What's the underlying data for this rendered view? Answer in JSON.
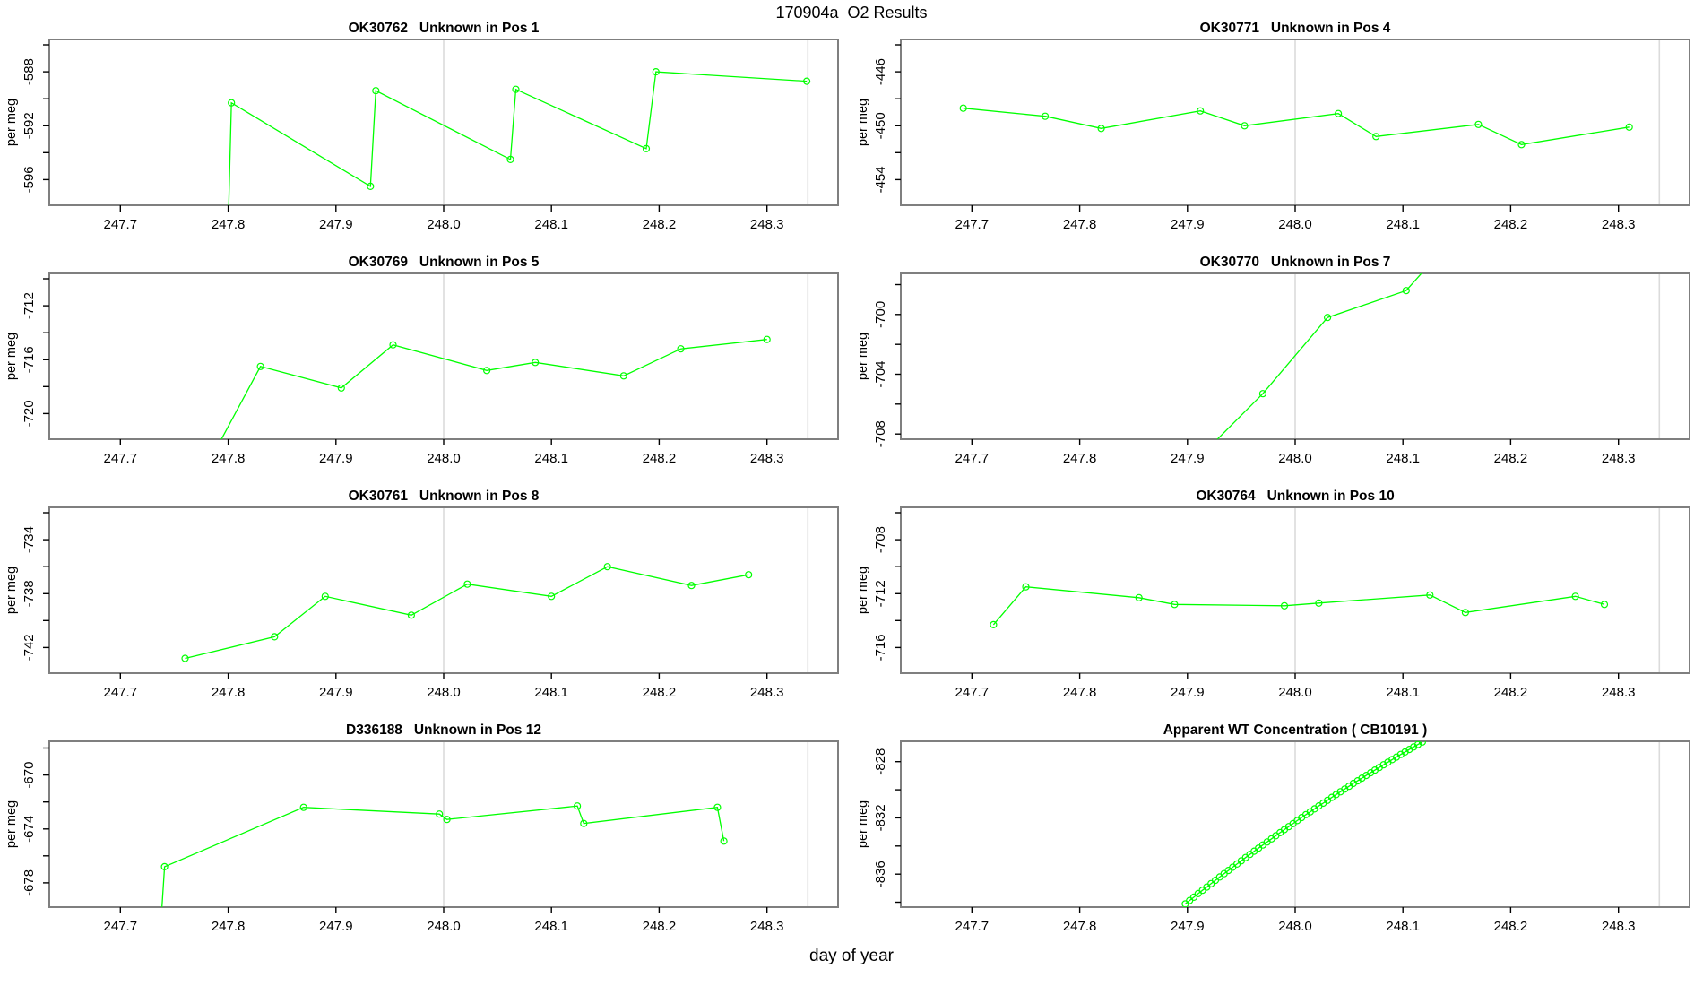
{
  "figure": {
    "title": "170904a  O2 Results",
    "xlabel": "day of year",
    "ylabel": "per meg",
    "accent_color": "#00FF00",
    "box_color": "#7F7F7F",
    "grid_color": "#DBDBDB",
    "xlim": [
      247.634,
      248.366
    ],
    "x_ticks": [
      247.7,
      247.8,
      247.9,
      248.0,
      248.1,
      248.2,
      248.3
    ],
    "x_tick_labels": [
      "247.7",
      "247.8",
      "247.9",
      "248.0",
      "248.1",
      "248.2",
      "248.3"
    ],
    "vlines": [
      248.0,
      248.338
    ]
  },
  "chart_data": [
    {
      "type": "line",
      "id": "OK30762",
      "title": "OK30762   Unknown in Pos 1",
      "marker": "circle-open",
      "ylim": [
        -597.9,
        -585.6
      ],
      "yticks": [
        -596,
        -594,
        -592,
        -590,
        -588,
        -586
      ],
      "yticks_labeled": [
        -596,
        -592,
        -588
      ],
      "x": [
        247.8,
        247.803,
        247.932,
        247.937,
        248.062,
        248.067,
        248.188,
        248.197,
        248.337
      ],
      "y": [
        -599.5,
        -590.3,
        -596.5,
        -589.4,
        -594.5,
        -589.3,
        -593.7,
        -588.0,
        -588.7
      ]
    },
    {
      "type": "line",
      "id": "OK30771",
      "title": "OK30771   Unknown in Pos 4",
      "marker": "circle-open",
      "ylim": [
        -455.9,
        -443.6
      ],
      "yticks": [
        -454,
        -452,
        -450,
        -448,
        -446,
        -444
      ],
      "yticks_labeled": [
        -454,
        -450,
        -446
      ],
      "x": [
        247.692,
        247.768,
        247.82,
        247.912,
        247.953,
        248.04,
        248.075,
        248.17,
        248.21,
        248.31
      ],
      "y": [
        -448.7,
        -449.3,
        -450.2,
        -448.9,
        -450.0,
        -449.1,
        -450.8,
        -449.9,
        -451.4,
        -450.1
      ]
    },
    {
      "type": "line",
      "id": "OK30769",
      "title": "OK30769   Unknown in Pos 5",
      "marker": "circle-open",
      "ylim": [
        -721.9,
        -709.6
      ],
      "yticks": [
        -720,
        -718,
        -716,
        -714,
        -712,
        -710
      ],
      "yticks_labeled": [
        -720,
        -716,
        -712
      ],
      "x": [
        247.783,
        247.83,
        247.905,
        247.953,
        248.04,
        248.085,
        248.167,
        248.22,
        248.3
      ],
      "y": [
        -723.5,
        -716.5,
        -718.1,
        -714.9,
        -716.8,
        -716.2,
        -717.2,
        -715.2,
        -714.5
      ]
    },
    {
      "type": "line",
      "id": "OK30770",
      "title": "OK30770   Unknown in Pos 7",
      "marker": "circle-open",
      "ylim": [
        -708.35,
        -697.25
      ],
      "yticks": [
        -708,
        -706,
        -704,
        -702,
        -700,
        -698
      ],
      "yticks_labeled": [
        -708,
        -704,
        -700
      ],
      "x": [
        247.905,
        247.97,
        248.03,
        248.103,
        248.14
      ],
      "y": [
        -710.0,
        -705.3,
        -700.2,
        -698.4,
        -695.4
      ]
    },
    {
      "type": "line",
      "id": "OK30761",
      "title": "OK30761   Unknown in Pos 8",
      "marker": "circle-open",
      "ylim": [
        -743.9,
        -731.6
      ],
      "yticks": [
        -742,
        -740,
        -738,
        -736,
        -734,
        -732
      ],
      "yticks_labeled": [
        -742,
        -738,
        -734
      ],
      "x": [
        247.76,
        247.843,
        247.89,
        247.97,
        248.022,
        248.1,
        248.152,
        248.23,
        248.283
      ],
      "y": [
        -742.8,
        -741.2,
        -738.2,
        -739.6,
        -737.3,
        -738.2,
        -736.0,
        -737.4,
        -736.6
      ]
    },
    {
      "type": "line",
      "id": "OK30764",
      "title": "OK30764   Unknown in Pos 10",
      "marker": "circle-open",
      "ylim": [
        -717.9,
        -705.6
      ],
      "yticks": [
        -716,
        -714,
        -712,
        -710,
        -708,
        -706
      ],
      "yticks_labeled": [
        -716,
        -712,
        -708
      ],
      "x": [
        247.72,
        247.75,
        247.855,
        247.888,
        247.99,
        248.022,
        248.125,
        248.158,
        248.26,
        248.287
      ],
      "y": [
        -714.3,
        -711.5,
        -712.3,
        -712.8,
        -712.9,
        -712.7,
        -712.1,
        -713.4,
        -712.2,
        -712.8
      ]
    },
    {
      "type": "line",
      "id": "D336188",
      "title": "D336188   Unknown in Pos 12",
      "marker": "circle-open",
      "ylim": [
        -679.8,
        -667.5
      ],
      "yticks": [
        -678,
        -676,
        -674,
        -672,
        -670,
        -668
      ],
      "yticks_labeled": [
        -678,
        -674,
        -670
      ],
      "x": [
        247.738,
        247.741,
        247.87,
        247.996,
        248.003,
        248.124,
        248.13,
        248.254,
        248.26
      ],
      "y": [
        -680.5,
        -676.8,
        -672.4,
        -672.9,
        -673.3,
        -672.3,
        -673.6,
        -672.4,
        -674.9
      ]
    },
    {
      "type": "line",
      "id": "CB10191",
      "title": "Apparent WT Concentration ( CB10191 )",
      "marker": "circle-open",
      "ylim": [
        -838.35,
        -826.55
      ],
      "yticks": [
        -838,
        -836,
        -834,
        -832,
        -830,
        -828
      ],
      "yticks_labeled": [
        -836,
        -832,
        -828
      ],
      "x": [
        247.898,
        247.902,
        247.906,
        247.91,
        247.914,
        247.918,
        247.922,
        247.926,
        247.93,
        247.934,
        247.938,
        247.942,
        247.946,
        247.95,
        247.954,
        247.958,
        247.962,
        247.966,
        247.97,
        247.974,
        247.978,
        247.982,
        247.986,
        247.99,
        247.994,
        247.998,
        248.002,
        248.006,
        248.01,
        248.014,
        248.018,
        248.022,
        248.026,
        248.03,
        248.034,
        248.038,
        248.042,
        248.046,
        248.05,
        248.054,
        248.058,
        248.062,
        248.066,
        248.07,
        248.074,
        248.078,
        248.082,
        248.086,
        248.09,
        248.094,
        248.098,
        248.102,
        248.106,
        248.11,
        248.114,
        248.118
      ],
      "y": [
        -838.12,
        -837.88,
        -837.64,
        -837.39,
        -837.15,
        -836.92,
        -836.68,
        -836.44,
        -836.21,
        -835.97,
        -835.74,
        -835.51,
        -835.28,
        -835.05,
        -834.82,
        -834.6,
        -834.37,
        -834.15,
        -833.93,
        -833.71,
        -833.49,
        -833.27,
        -833.05,
        -832.83,
        -832.62,
        -832.41,
        -832.19,
        -831.98,
        -831.77,
        -831.57,
        -831.36,
        -831.15,
        -830.95,
        -830.75,
        -830.54,
        -830.34,
        -830.14,
        -829.95,
        -829.75,
        -829.55,
        -829.36,
        -829.17,
        -828.98,
        -828.79,
        -828.6,
        -828.41,
        -828.22,
        -828.04,
        -827.85,
        -827.67,
        -827.49,
        -827.31,
        -827.13,
        -826.95,
        -826.78,
        -826.6
      ]
    }
  ]
}
